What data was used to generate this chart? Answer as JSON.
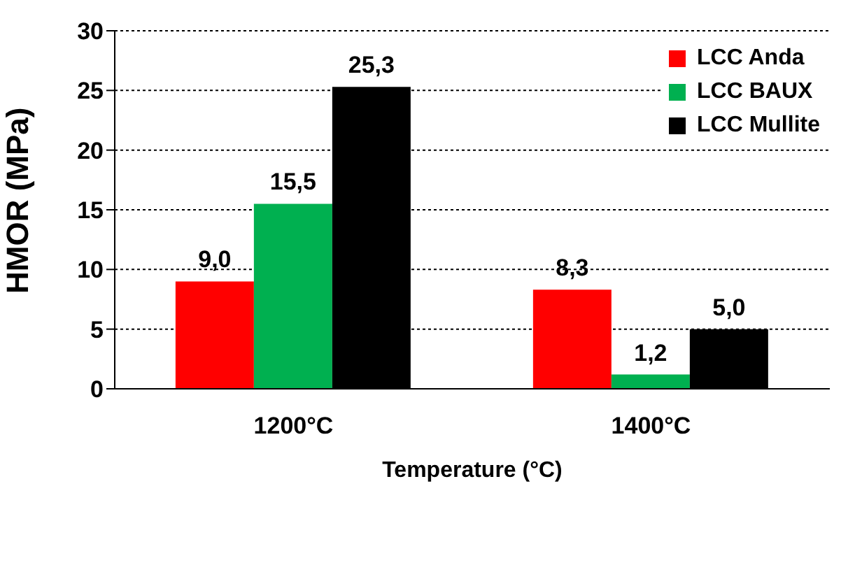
{
  "chart_data": {
    "type": "bar",
    "ylabel": "HMOR (MPa)",
    "xlabel": "Temperature (°C)",
    "categories": [
      "1200°C",
      "1400°C"
    ],
    "series": [
      {
        "name": "LCC Anda",
        "color": "#ff0000",
        "values": [
          9.0,
          8.3
        ],
        "value_labels": [
          "9,0",
          "8,3"
        ]
      },
      {
        "name": "LCC BAUX",
        "color": "#00b050",
        "values": [
          15.5,
          1.2
        ],
        "value_labels": [
          "15,5",
          "1,2"
        ]
      },
      {
        "name": "LCC Mullite",
        "color": "#000000",
        "values": [
          25.3,
          5.0
        ],
        "value_labels": [
          "25,3",
          "5,0"
        ]
      }
    ],
    "ylim": [
      0,
      30
    ],
    "yticks": [
      0,
      5,
      10,
      15,
      20,
      25,
      30
    ],
    "grid": "y",
    "legend": "top right"
  }
}
